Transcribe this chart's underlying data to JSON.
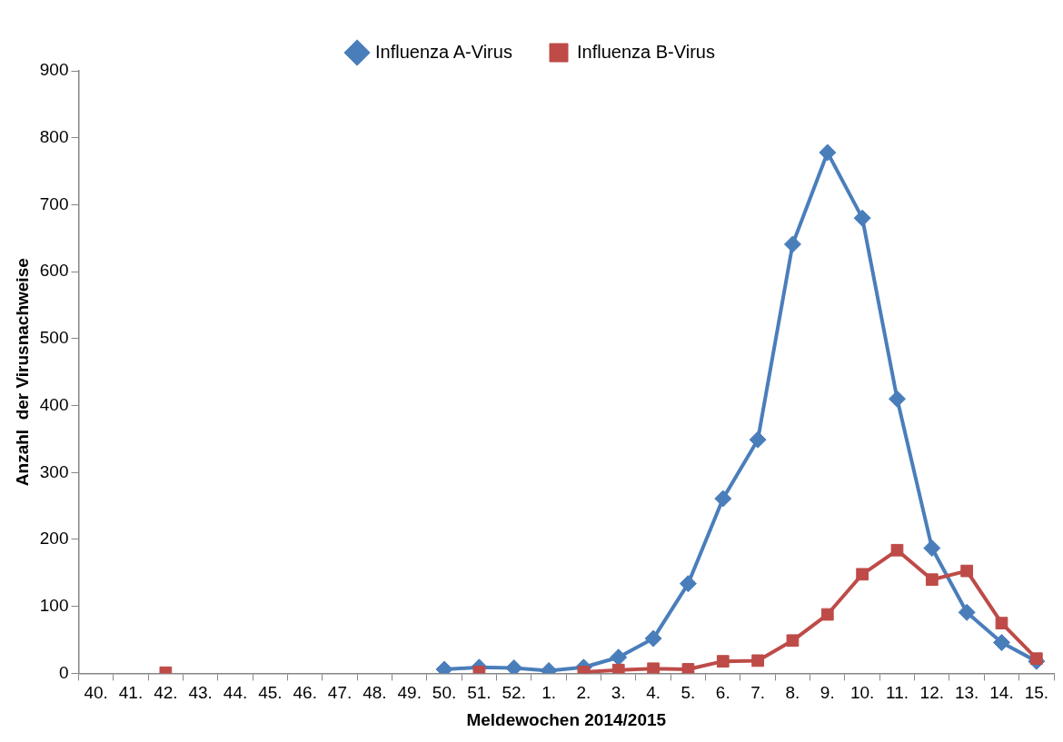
{
  "chart_data": {
    "type": "line",
    "xlabel": "Meldewochen 2014/2015",
    "ylabel": "Anzahl  der Virusnachweise",
    "categories": [
      "40.",
      "41.",
      "42.",
      "43.",
      "44.",
      "45.",
      "46.",
      "47.",
      "48.",
      "49.",
      "50.",
      "51.",
      "52.",
      "1.",
      "2.",
      "3.",
      "4.",
      "5.",
      "6.",
      "7.",
      "8.",
      "9.",
      "10.",
      "11.",
      "12.",
      "13.",
      "14.",
      "15."
    ],
    "series": [
      {
        "name": "Influenza A-Virus",
        "color": "#4a7ebb",
        "marker": "diamond",
        "values": [
          null,
          null,
          null,
          null,
          null,
          null,
          null,
          null,
          null,
          null,
          6,
          9,
          8,
          4,
          9,
          24,
          52,
          134,
          261,
          349,
          641,
          778,
          680,
          410,
          187,
          91,
          46,
          18
        ]
      },
      {
        "name": "Influenza B-Virus",
        "color": "#be4b48",
        "marker": "square",
        "values": [
          null,
          null,
          1,
          null,
          null,
          null,
          null,
          null,
          null,
          null,
          null,
          2,
          null,
          null,
          2,
          5,
          7,
          6,
          18,
          19,
          49,
          88,
          148,
          184,
          140,
          153,
          75,
          22
        ]
      }
    ],
    "ylim": [
      0,
      900
    ],
    "yticks": [
      0,
      100,
      200,
      300,
      400,
      500,
      600,
      700,
      800,
      900
    ],
    "grid": false,
    "legend": "top",
    "line_style": "solid"
  }
}
